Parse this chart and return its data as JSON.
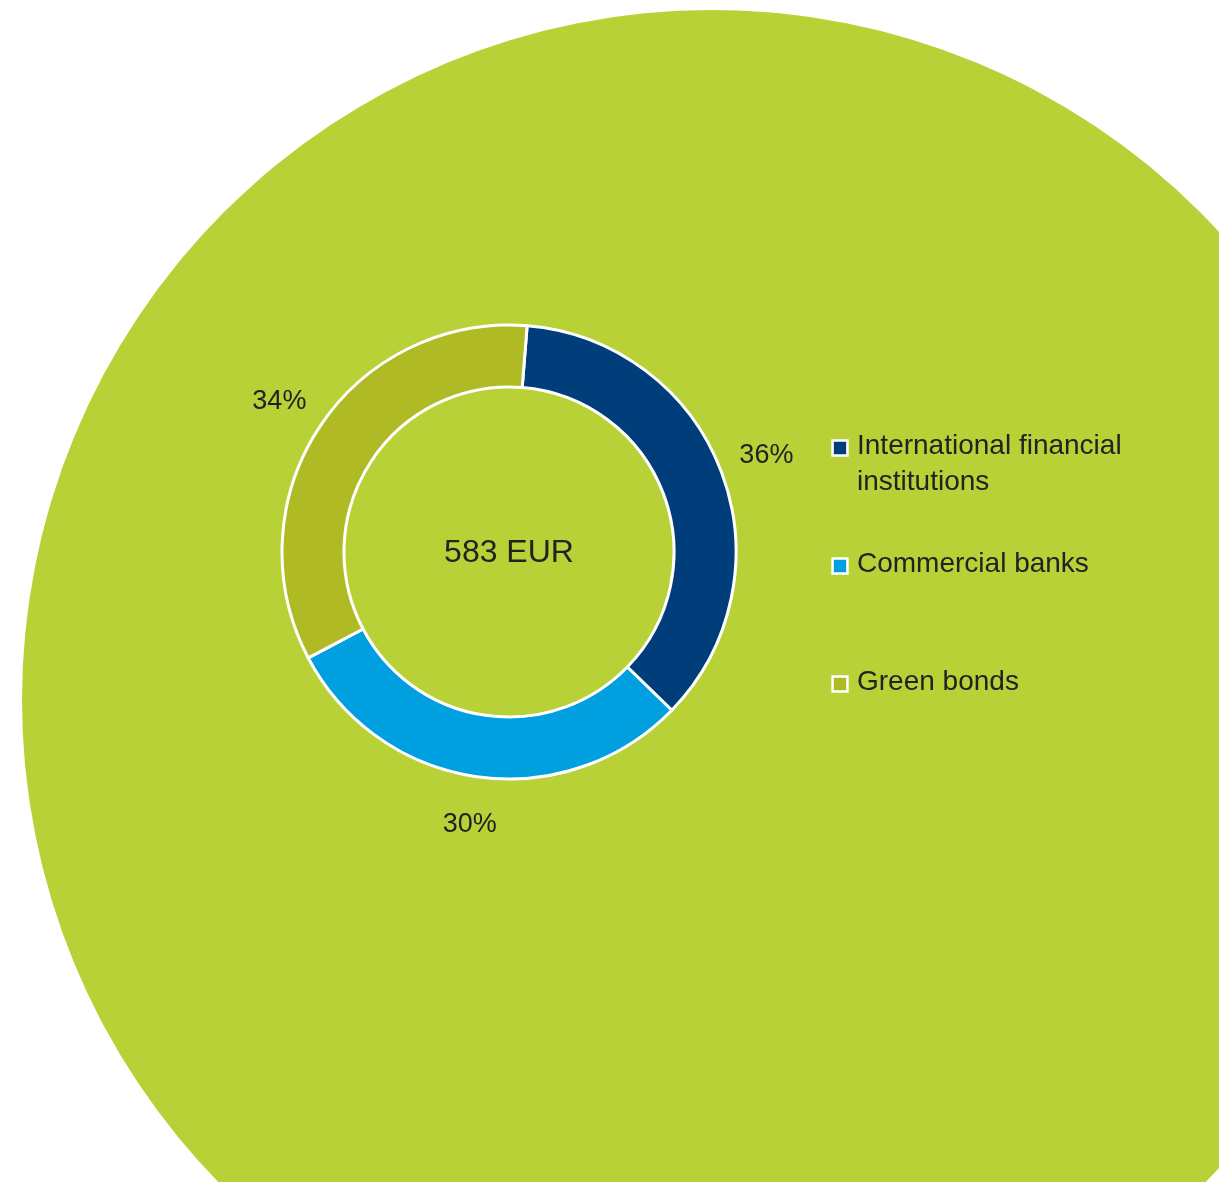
{
  "chart_data": {
    "type": "donut",
    "categories": [
      "International financial institutions",
      "Commercial banks",
      "Green bonds"
    ],
    "values": [
      36,
      30,
      34
    ],
    "colors": [
      "#003d7b",
      "#00a0e0",
      "#afba24"
    ],
    "value_labels": [
      "36%",
      "30%",
      "34%"
    ],
    "annotations": [
      "583 EUR"
    ],
    "legend": "right"
  }
}
